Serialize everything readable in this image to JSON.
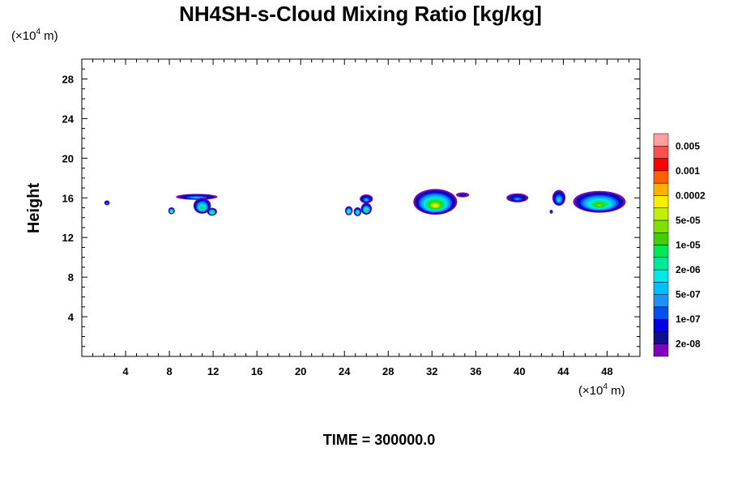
{
  "chart_data": {
    "type": "heatmap",
    "title": "NH4SH-s-Cloud Mixing Ratio [kg/kg]",
    "xlabel": "",
    "ylabel": "Height",
    "x_unit": {
      "prefix": "(×10",
      "exp": "4",
      "suffix": " m)"
    },
    "y_unit": {
      "prefix": "(×10",
      "exp": "4",
      "suffix": " m)"
    },
    "xlim": [
      0,
      51
    ],
    "ylim": [
      0,
      30
    ],
    "x_ticks": [
      4,
      8,
      12,
      16,
      20,
      24,
      28,
      32,
      36,
      40,
      44,
      48
    ],
    "x_tick_labels": [
      "4",
      "8",
      "12",
      "16",
      "20",
      "24",
      "28",
      "32",
      "36",
      "40",
      "44",
      "48"
    ],
    "y_ticks": [
      4,
      8,
      12,
      16,
      20,
      24,
      28
    ],
    "y_tick_labels": [
      "4",
      "8",
      "12",
      "16",
      "20",
      "24",
      "28"
    ],
    "colorbar": {
      "colors": [
        "#7f00bf",
        "#10108f",
        "#0000e0",
        "#0050f0",
        "#1f8fff",
        "#00bfff",
        "#00e8e8",
        "#00e89a",
        "#00e855",
        "#3fd000",
        "#80e000",
        "#c0f000",
        "#f8f000",
        "#ffb000",
        "#ff6000",
        "#ff0000",
        "#ff5050",
        "#ff9f9f"
      ],
      "labels": [
        "2e-08",
        "1e-07",
        "5e-07",
        "2e-06",
        "1e-05",
        "5e-05",
        "0.0002",
        "0.001",
        "0.005"
      ]
    },
    "clouds": [
      {
        "x": 2.3,
        "y": 15.5,
        "rx": 0.25,
        "ry": 0.25,
        "peak": 4
      },
      {
        "x": 10.5,
        "y": 16.1,
        "rx": 1.9,
        "ry": 0.3,
        "peak": 5
      },
      {
        "x": 11.0,
        "y": 15.2,
        "rx": 0.8,
        "ry": 0.8,
        "peak": 9
      },
      {
        "x": 8.2,
        "y": 14.7,
        "rx": 0.3,
        "ry": 0.35,
        "peak": 10
      },
      {
        "x": 11.9,
        "y": 14.6,
        "rx": 0.45,
        "ry": 0.4,
        "peak": 10
      },
      {
        "x": 26.0,
        "y": 15.9,
        "rx": 0.6,
        "ry": 0.45,
        "peak": 5
      },
      {
        "x": 26.0,
        "y": 14.9,
        "rx": 0.5,
        "ry": 0.6,
        "peak": 9
      },
      {
        "x": 24.4,
        "y": 14.7,
        "rx": 0.35,
        "ry": 0.45,
        "peak": 10
      },
      {
        "x": 25.2,
        "y": 14.6,
        "rx": 0.35,
        "ry": 0.45,
        "peak": 9
      },
      {
        "x": 32.3,
        "y": 15.6,
        "rx": 2.0,
        "ry": 1.3,
        "peak": 12
      },
      {
        "x": 34.8,
        "y": 16.3,
        "rx": 0.6,
        "ry": 0.25,
        "peak": 1
      },
      {
        "x": 39.8,
        "y": 16.0,
        "rx": 1.0,
        "ry": 0.45,
        "peak": 4
      },
      {
        "x": 43.6,
        "y": 16.0,
        "rx": 0.6,
        "ry": 0.8,
        "peak": 6
      },
      {
        "x": 42.9,
        "y": 14.6,
        "rx": 0.15,
        "ry": 0.2,
        "peak": 3
      },
      {
        "x": 47.3,
        "y": 15.6,
        "rx": 2.4,
        "ry": 1.1,
        "peak": 10
      }
    ]
  },
  "footer": {
    "time_label": "TIME = 300000.0"
  }
}
